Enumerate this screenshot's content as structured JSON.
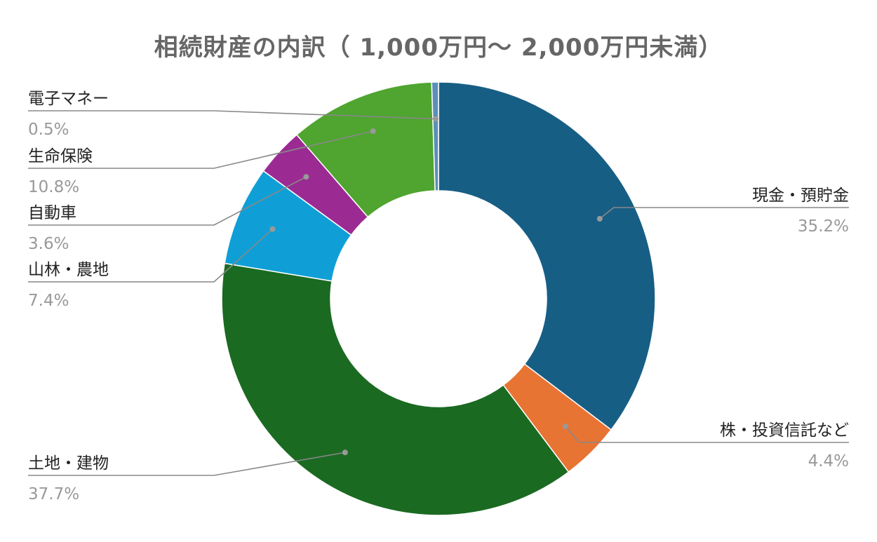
{
  "chart_data": {
    "type": "pie",
    "title": "相続財産の内訳（ 1,000万円～ 2,000万円未満）",
    "slices": [
      {
        "label": "現金・預貯金",
        "value": 35.2,
        "display": "35.2%",
        "color": "#175e85"
      },
      {
        "label": "株・投資信託など",
        "value": 4.4,
        "display": "4.4%",
        "color": "#e87434"
      },
      {
        "label": "土地・建物",
        "value": 37.7,
        "display": "37.7%",
        "color": "#1b6a22"
      },
      {
        "label": "山林・農地",
        "value": 7.4,
        "display": "7.4%",
        "color": "#0f9fd6"
      },
      {
        "label": "自動車",
        "value": 3.6,
        "display": "3.6%",
        "color": "#9b2b92"
      },
      {
        "label": "生命保険",
        "value": 10.8,
        "display": "10.8%",
        "color": "#4fa52f"
      },
      {
        "label": "電子マネー",
        "value": 0.5,
        "display": "0.5%",
        "color": "#5b8fb8"
      }
    ]
  }
}
